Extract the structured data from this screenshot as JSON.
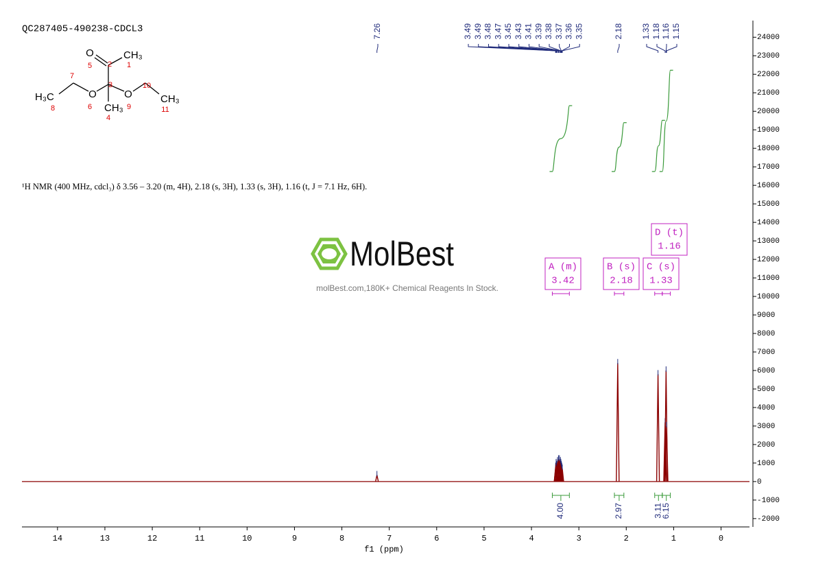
{
  "chart_data": {
    "type": "nmr",
    "title": "QC287405-490238-CDCL3",
    "description": "¹H NMR (400 MHz, cdcl₃) δ 3.56 – 3.20 (m, 4H), 2.18 (s, 3H), 1.33 (s, 3H), 1.16 (t, J = 7.1 Hz, 6H).",
    "xlabel": "f1 (ppm)",
    "xlim": [
      14.75,
      -0.6
    ],
    "xticks": [
      14,
      13,
      12,
      11,
      10,
      9,
      8,
      7,
      6,
      5,
      4,
      3,
      2,
      1,
      0
    ],
    "ylim": [
      -2450,
      24900
    ],
    "yticks": [
      -2000,
      -1000,
      0,
      1000,
      2000,
      3000,
      4000,
      5000,
      6000,
      7000,
      8000,
      9000,
      10000,
      11000,
      12000,
      13000,
      14000,
      15000,
      16000,
      17000,
      18000,
      19000,
      20000,
      21000,
      22000,
      23000,
      24000
    ],
    "color": "#8b0000",
    "peaks": {
      "x": [
        7.26,
        3.49,
        3.49,
        3.48,
        3.47,
        3.45,
        3.43,
        3.41,
        3.39,
        3.38,
        3.37,
        3.36,
        3.35,
        2.18,
        1.33,
        1.18,
        1.16,
        1.15
      ],
      "values": [
        350,
        700,
        800,
        1000,
        900,
        1100,
        1200,
        1200,
        1100,
        1000,
        900,
        800,
        700,
        6400,
        5800,
        3200,
        6000,
        3000
      ]
    },
    "integrals": [
      {
        "value": 4,
        "label": "4.00",
        "from": 3.56,
        "to": 3.2
      },
      {
        "value": 2.97,
        "from": 2.25,
        "to": 2.05
      },
      {
        "value": 3.11,
        "from": 1.4,
        "to": 1.24
      },
      {
        "value": 6.15,
        "from": 1.24,
        "to": 1.07
      }
    ],
    "multiplets": [
      {
        "label": "A (m)",
        "shift": 3.42
      },
      {
        "label": "B (s)",
        "shift": 2.18
      },
      {
        "label": "C (s)",
        "shift": 1.33
      },
      {
        "label": "D (t)",
        "shift": 1.16
      }
    ]
  },
  "structure": {
    "atoms": [
      "O",
      "CH₃",
      "5",
      "2",
      "1",
      "3",
      "H₃C",
      "7",
      "O",
      "10",
      "O",
      "CH₃",
      "8",
      "6",
      "CH₃",
      "9",
      "4",
      "11"
    ]
  },
  "watermark": {
    "brand": "MolBest",
    "tagline": "molBest.com,180K+ Chemical Reagents In Stock."
  }
}
